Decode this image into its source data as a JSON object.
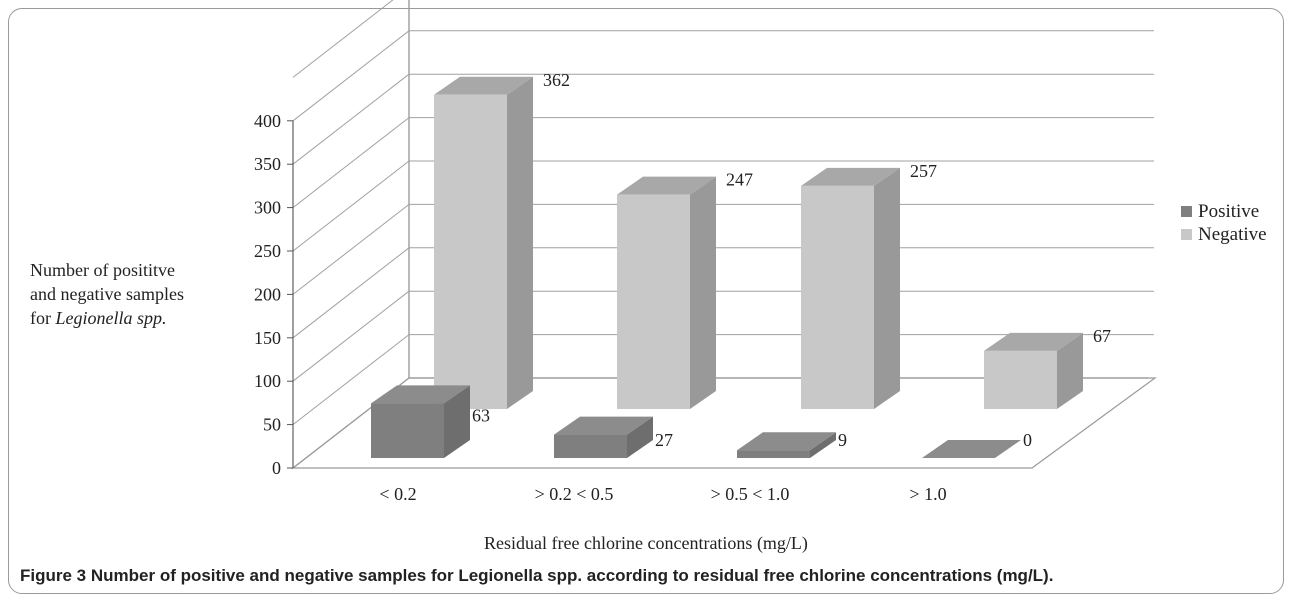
{
  "chart_data": {
    "type": "bar",
    "categories": [
      "< 0.2",
      "> 0.2 < 0.5",
      "> 0.5 < 1.0",
      "> 1.0"
    ],
    "series": [
      {
        "name": "Positive",
        "values": [
          63,
          27,
          9,
          0
        ],
        "color": "#7f7f7f"
      },
      {
        "name": "Negative",
        "values": [
          362,
          247,
          257,
          67
        ],
        "color": "#c8c8c8"
      }
    ],
    "data_labels": {
      "Positive": [
        "63",
        "27",
        "9",
        "0"
      ],
      "Negative": [
        "362",
        "247",
        "257",
        "67"
      ]
    },
    "yticks": [
      "0",
      "50",
      "100",
      "150",
      "200",
      "250",
      "300",
      "350",
      "400"
    ],
    "ylim": [
      0,
      400
    ],
    "ylabel_lines": [
      "Number of posititve",
      "and negative samples",
      "for Legionella spp."
    ],
    "xlabel": "Residual free chlorine concentrations (mg/L)",
    "legend_position": "right",
    "grid": true,
    "style": "3d-clustered-column"
  },
  "caption": {
    "number": "Figure 3",
    "text": "Number of positive and negative samples for Legionella spp. according to residual free chlorine concentrations (mg/L)."
  }
}
